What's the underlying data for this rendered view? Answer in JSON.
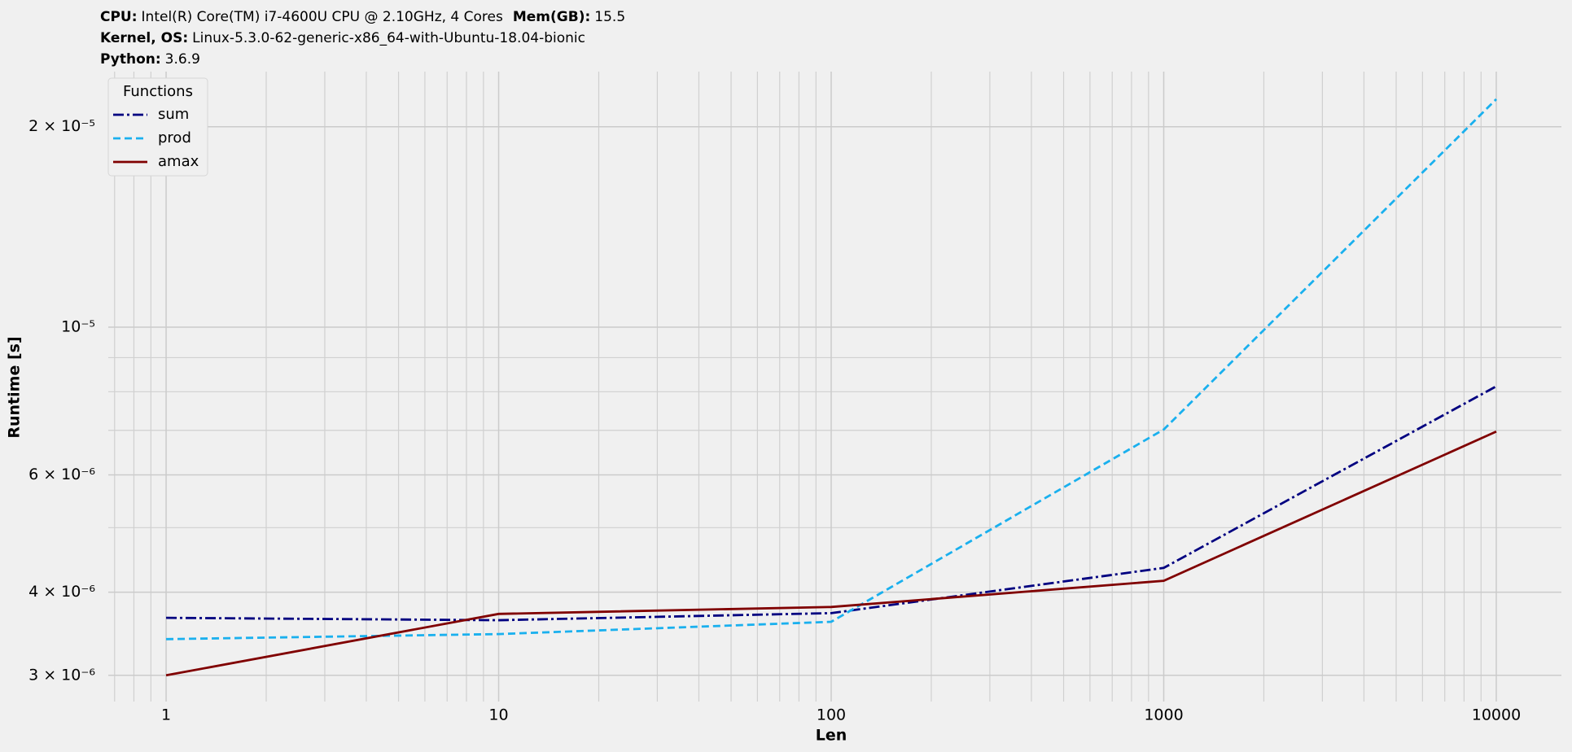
{
  "system_info": [
    [
      {
        "label": "CPU:",
        "value": "Intel(R) Core(TM) i7-4600U CPU @ 2.10GHz, 4 Cores"
      },
      {
        "label": "Mem(GB):",
        "value": "15.5"
      }
    ],
    [
      {
        "label": "Kernel, OS:",
        "value": "Linux-5.3.0-62-generic-x86_64-with-Ubuntu-18.04-bionic"
      }
    ],
    [
      {
        "label": "Python:",
        "value": "3.6.9"
      }
    ]
  ],
  "chart_data": {
    "type": "line",
    "x_label": "Len",
    "y_label": "Runtime [s]",
    "x": [
      1,
      10,
      100,
      1000,
      10000
    ],
    "xscale": "log",
    "yscale": "log",
    "xlim": [
      0.67,
      15700
    ],
    "ylim": [
      2.74e-06,
      2.42e-05
    ],
    "xticks": [
      1,
      10,
      100,
      1000,
      10000
    ],
    "xminor": [
      0.7,
      0.8,
      0.9,
      2,
      3,
      4,
      5,
      6,
      7,
      8,
      9,
      20,
      30,
      40,
      50,
      60,
      70,
      80,
      90,
      200,
      300,
      400,
      500,
      600,
      700,
      800,
      900,
      2000,
      3000,
      4000,
      5000,
      6000,
      7000,
      8000,
      9000
    ],
    "yticks": [
      {
        "value": 3e-06,
        "label": "3 × 10⁻⁶"
      },
      {
        "value": 4e-06,
        "label": "4 × 10⁻⁶"
      },
      {
        "value": 6e-06,
        "label": "6 × 10⁻⁶"
      },
      {
        "value": 1e-05,
        "label": "10⁻⁵"
      },
      {
        "value": 2e-05,
        "label": "2 × 10⁻⁵"
      }
    ],
    "yminor": [
      5e-06,
      7e-06,
      8e-06,
      9e-06
    ],
    "grid": true,
    "legend_title": "Functions",
    "legend_position": "upper left",
    "series": [
      {
        "name": "sum",
        "color": "#000080",
        "linestyle": "dashdot",
        "values": [
          3.66e-06,
          3.63e-06,
          3.72e-06,
          4.35e-06,
          8.15e-06
        ]
      },
      {
        "name": "prod",
        "color": "#1ab0ee",
        "linestyle": "dashed",
        "values": [
          3.4e-06,
          3.46e-06,
          3.61e-06,
          7.02e-06,
          2.2e-05
        ]
      },
      {
        "name": "amax",
        "color": "#800000",
        "linestyle": "solid",
        "values": [
          3e-06,
          3.71e-06,
          3.8e-06,
          4.16e-06,
          6.97e-06
        ]
      }
    ]
  }
}
